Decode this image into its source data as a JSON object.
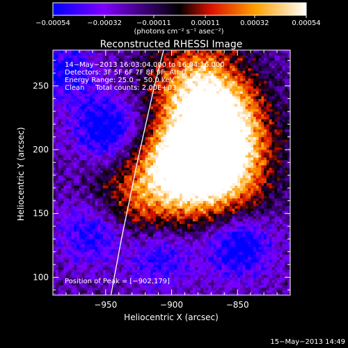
{
  "chart_data": {
    "type": "heatmap",
    "title": "Reconstructed RHESSI Image",
    "xlabel": "Heliocentric X (arcsec)",
    "ylabel": "Heliocentric Y (arcsec)",
    "xlim": [
      -990,
      -810
    ],
    "ylim": [
      86,
      278
    ],
    "x_ticks": [
      -950,
      -900,
      -850
    ],
    "x_tick_labels": [
      "−950",
      "−900",
      "−850"
    ],
    "y_ticks": [
      100,
      150,
      200,
      250
    ],
    "y_tick_labels": [
      "100",
      "150",
      "200",
      "250"
    ],
    "colorbar": {
      "range": [
        -0.00054,
        0.00054
      ],
      "ticks": [
        -0.00054,
        -0.00032,
        -0.00011,
        0.00011,
        0.00032,
        0.00054
      ],
      "tick_labels": [
        "−0.00054",
        "−0.00032",
        "−0.00011",
        "0.00011",
        "0.00032",
        "0.00054"
      ],
      "units_label": "(photons cm⁻² s⁻¹ asec⁻²)",
      "colormap": [
        "#0000ff",
        "#7f00ff",
        "#000000",
        "#ff2800",
        "#ffb000",
        "#ffffff"
      ]
    },
    "annotations": [
      "14−May−2013 16:03:04.000 to 16:04:16.000",
      "Detectors: 3F 5F 6F 7F 8F 9F, Att 0",
      "Energy Range: 25.0 − 50.0 keV",
      "Clean     Total counts: 2.00E+03"
    ],
    "peak_label": "Position of Peak = [−902,179]",
    "peak_position": [
      -902,
      179
    ],
    "limb_arc": [
      [
        -946,
        86
      ],
      [
        -938,
        130
      ],
      [
        -926,
        190
      ],
      [
        -913,
        250
      ],
      [
        -906,
        278
      ]
    ],
    "emission_regions": [
      {
        "x": -880,
        "y": 195,
        "value": 0.0005
      },
      {
        "x": -860,
        "y": 205,
        "value": 0.00048
      },
      {
        "x": -900,
        "y": 180,
        "value": 0.00046
      },
      {
        "x": -870,
        "y": 235,
        "value": 0.0004
      },
      {
        "x": -885,
        "y": 255,
        "value": 0.00034
      },
      {
        "x": -860,
        "y": 165,
        "value": 0.00028
      },
      {
        "x": -935,
        "y": 155,
        "value": 0.00026
      }
    ],
    "negative_regions": [
      {
        "x": -950,
        "y": 215,
        "value": -0.0004
      },
      {
        "x": -850,
        "y": 125,
        "value": -0.00042
      },
      {
        "x": -960,
        "y": 135,
        "value": -0.00036
      },
      {
        "x": -910,
        "y": 115,
        "value": -0.00028
      },
      {
        "x": -985,
        "y": 260,
        "value": -0.0003
      }
    ]
  },
  "footer": {
    "timestamp": "15−May−2013 14:49"
  }
}
